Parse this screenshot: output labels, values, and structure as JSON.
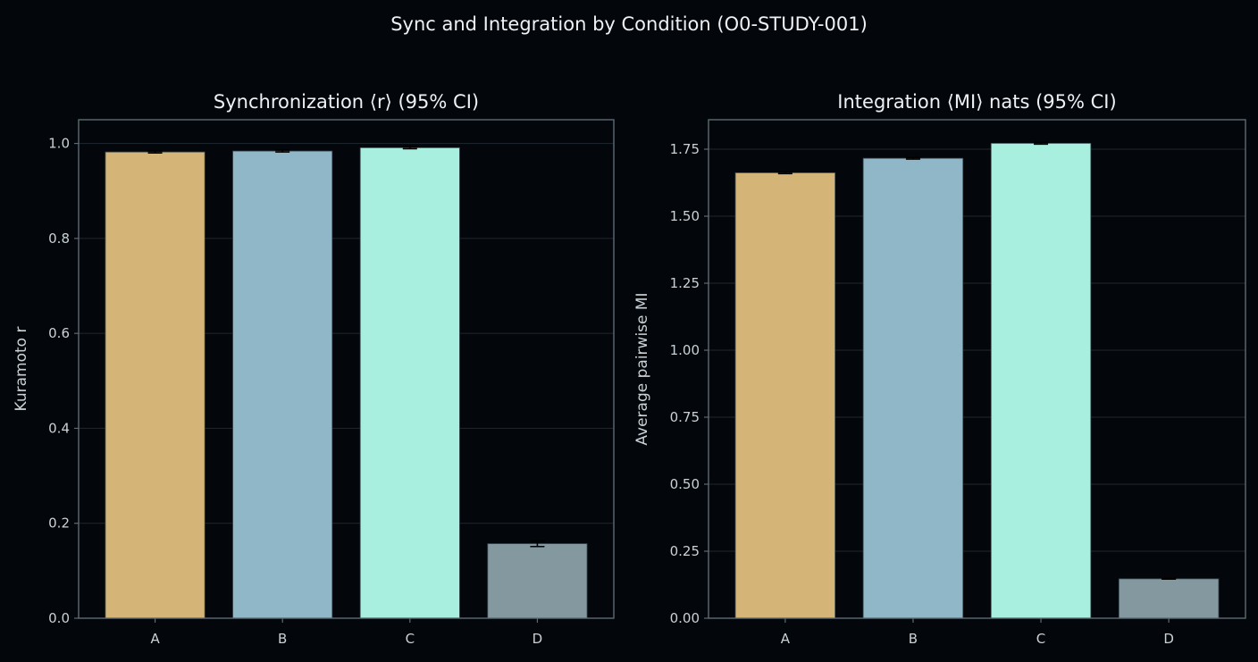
{
  "suptitle": "Sync and Integration by Condition (O0-STUDY-001)",
  "colors": {
    "background": "#03060a",
    "A": "#d4b577",
    "B": "#8fb7c7",
    "C": "#a8efe0",
    "D": "#83989f"
  },
  "chart_data": [
    {
      "type": "bar",
      "title": "Synchronization  ⟨r⟩ (95% CI)",
      "xlabel": "",
      "ylabel": "Kuramoto  r",
      "categories": [
        "A",
        "B",
        "C",
        "D"
      ],
      "values": [
        0.982,
        0.984,
        0.991,
        0.157
      ],
      "ci_low": [
        0.98,
        0.982,
        0.989,
        0.151
      ],
      "ci_high": [
        0.984,
        0.986,
        0.993,
        0.163
      ],
      "ylim": [
        0,
        1.05
      ],
      "yticks": [
        0.0,
        0.2,
        0.4,
        0.6,
        0.8,
        1.0
      ],
      "ytick_labels": [
        "0.0",
        "0.2",
        "0.4",
        "0.6",
        "0.8",
        "1.0"
      ],
      "grid": true
    },
    {
      "type": "bar",
      "title": "Integration  ⟨MI⟩ nats (95% CI)",
      "xlabel": "",
      "ylabel": "Average pairwise MI",
      "categories": [
        "A",
        "B",
        "C",
        "D"
      ],
      "values": [
        1.662,
        1.716,
        1.772,
        0.147
      ],
      "ci_low": [
        1.659,
        1.713,
        1.769,
        0.146
      ],
      "ci_high": [
        1.665,
        1.719,
        1.775,
        0.148
      ],
      "ylim": [
        0,
        1.86
      ],
      "yticks": [
        0.0,
        0.25,
        0.5,
        0.75,
        1.0,
        1.25,
        1.5,
        1.75
      ],
      "ytick_labels": [
        "0.00",
        "0.25",
        "0.50",
        "0.75",
        "1.00",
        "1.25",
        "1.50",
        "1.75"
      ],
      "grid": true
    }
  ]
}
